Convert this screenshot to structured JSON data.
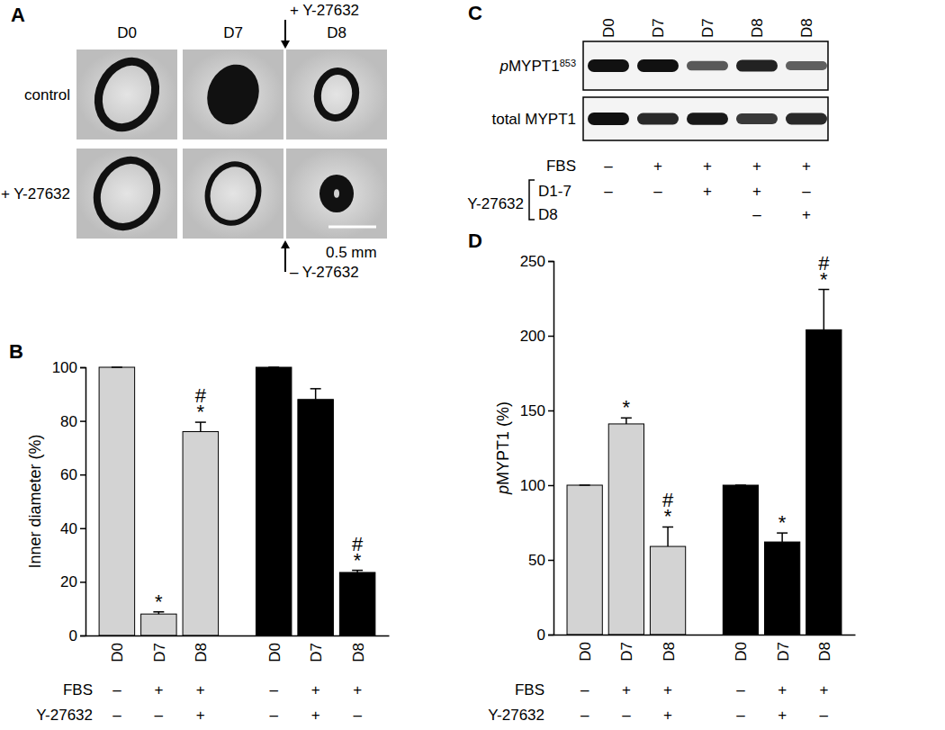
{
  "panel_a": {
    "letter": "A",
    "columns": [
      "D0",
      "D7",
      "D8"
    ],
    "rows": [
      "control",
      "+ Y-27632"
    ],
    "add_label": "+ Y-27632",
    "remove_label": "– Y-27632",
    "scale_bar": "0.5 mm"
  },
  "panel_c": {
    "letter": "C",
    "lanes": [
      "D0",
      "D7",
      "D7",
      "D8",
      "D8"
    ],
    "blots": [
      {
        "label": "pMYPT1",
        "superscript": "853",
        "bands": [
          1.0,
          1.0,
          0.55,
          0.9,
          0.5
        ]
      },
      {
        "label": "total MYPT1",
        "bands": [
          1.0,
          0.85,
          0.95,
          0.75,
          0.85
        ]
      }
    ],
    "conditions": [
      {
        "label": "FBS",
        "values": [
          "–",
          "+",
          "+",
          "+",
          "+"
        ]
      }
    ],
    "bracket": {
      "label": "Y-27632",
      "rows": [
        {
          "label": "D1-7",
          "values": [
            "–",
            "–",
            "+",
            "+",
            "–"
          ]
        },
        {
          "label": "D8",
          "values": [
            null,
            null,
            null,
            "–",
            "+"
          ]
        }
      ]
    }
  },
  "chart_data": [
    {
      "type": "bar",
      "title": "B",
      "y_label": "Inner diameter (%)",
      "categories": [
        "D0",
        "D7",
        "D8",
        "D0",
        "D7",
        "D8"
      ],
      "values": [
        100,
        8,
        76,
        100,
        88,
        23.5
      ],
      "errors": [
        0,
        0.8,
        3.5,
        0,
        4,
        0.8
      ],
      "colors": [
        "#d3d3d3",
        "#d3d3d3",
        "#d3d3d3",
        "#000000",
        "#000000",
        "#000000"
      ],
      "ylim": [
        0,
        100
      ],
      "yticks": [
        0,
        20,
        40,
        60,
        80,
        100
      ],
      "significance": [
        null,
        [
          "*"
        ],
        [
          "#",
          "*"
        ],
        null,
        null,
        [
          "#",
          "*"
        ]
      ],
      "conditions": [
        {
          "label": "FBS",
          "values": [
            "–",
            "+",
            "+",
            "–",
            "+",
            "+"
          ]
        },
        {
          "label": "Y-27632",
          "values": [
            "–",
            "–",
            "+",
            "–",
            "+",
            "–"
          ]
        }
      ]
    },
    {
      "type": "bar",
      "title": "D",
      "y_label": "pMYPT1 (%)",
      "categories": [
        "D0",
        "D7",
        "D8",
        "D0",
        "D7",
        "D8"
      ],
      "values": [
        100,
        141,
        59,
        100,
        62,
        204
      ],
      "errors": [
        0,
        4,
        13,
        0,
        6,
        27
      ],
      "colors": [
        "#d3d3d3",
        "#d3d3d3",
        "#d3d3d3",
        "#000000",
        "#000000",
        "#000000"
      ],
      "ylim": [
        0,
        250
      ],
      "yticks": [
        0,
        50,
        100,
        150,
        200,
        250
      ],
      "significance": [
        null,
        [
          "*"
        ],
        [
          "#",
          "*"
        ],
        null,
        [
          "*"
        ],
        [
          "#",
          "*"
        ]
      ],
      "conditions": [
        {
          "label": "FBS",
          "values": [
            "–",
            "+",
            "+",
            "–",
            "+",
            "+"
          ]
        },
        {
          "label": "Y-27632",
          "values": [
            "–",
            "–",
            "+",
            "–",
            "+",
            "–"
          ]
        }
      ]
    }
  ]
}
